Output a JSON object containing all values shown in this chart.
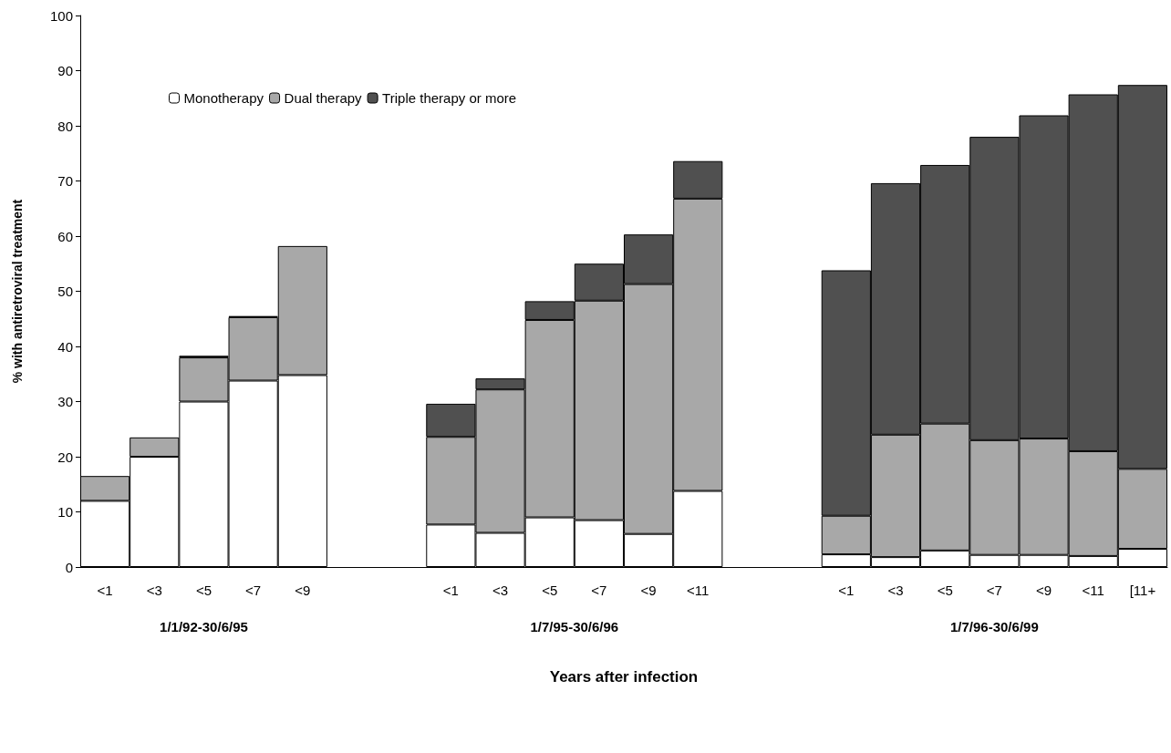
{
  "chart_data": {
    "type": "bar",
    "stacked": true,
    "xlabel": "Years after infection",
    "ylabel": "% with antiretroviral treatment",
    "categories": [
      "<1",
      "<3",
      "<5",
      "<7",
      "<9",
      null,
      null,
      "<1",
      "<3",
      "<5",
      "<7",
      "<9",
      "<11",
      null,
      null,
      "<1",
      "<3",
      "<5",
      "<7",
      "<9",
      "<11",
      "[11+"
    ],
    "series": [
      {
        "name": "Monotherapy",
        "color": "#ffffff",
        "values": [
          12,
          20,
          30,
          33.8,
          34.8,
          null,
          null,
          7.7,
          6.2,
          9,
          8.5,
          6,
          13.8,
          null,
          null,
          2.3,
          1.8,
          3,
          2.2,
          2.2,
          2,
          3.3
        ]
      },
      {
        "name": "Dual therapy",
        "color": "#a8a8a8",
        "values": [
          4.5,
          3.5,
          8,
          11.5,
          23.4,
          null,
          null,
          15.9,
          26,
          35.8,
          39.8,
          45.3,
          53,
          null,
          null,
          7,
          22.2,
          23,
          20.8,
          21.1,
          19,
          14.5
        ]
      },
      {
        "name": "Triple therapy or more",
        "color": "#505050",
        "values": [
          null,
          null,
          0.3,
          0.2,
          null,
          null,
          null,
          6,
          2,
          3.4,
          6.7,
          9,
          6.8,
          null,
          null,
          44.5,
          45.6,
          46.9,
          55,
          58.6,
          64.7,
          69.6
        ]
      }
    ],
    "annotations": [
      "1/1/92-30/6/95",
      "1/7/95-30/6/96",
      "1/7/96-30/6/99"
    ],
    "ylim": [
      0,
      100
    ],
    "yticks": [
      0,
      10,
      20,
      30,
      40,
      50,
      60,
      70,
      80,
      90,
      100
    ],
    "grid": false,
    "legend": "top left"
  }
}
